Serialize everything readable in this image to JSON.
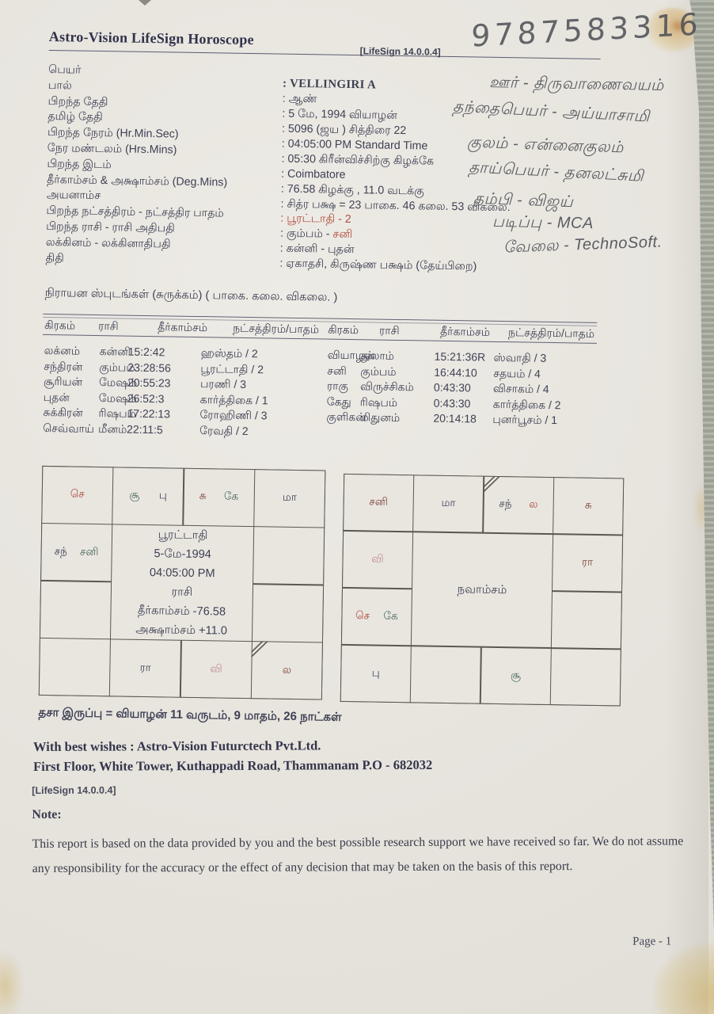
{
  "colors": {
    "ink": "#3e4054",
    "red": "#b14a3d",
    "pink": "#c08d90",
    "green": "#4e6e5b",
    "maroon": "#7e4438"
  },
  "header": {
    "title": "Astro-Vision LifeSign Horoscope",
    "version": "[LifeSign 14.0.0.4]"
  },
  "handwriting": {
    "phone": "9787583316",
    "notes": [
      "ஊர் - திருவாணைவயம்",
      "தந்தைபெயர் - அய்யாசாமி",
      "குலம் - என்னைகுலம்",
      "தாய்பெயர் - தனலட்சுமி",
      "தம்பி - விஜய்",
      "படிப்பு - MCA",
      "வேலை - TechnoSoft."
    ]
  },
  "info": {
    "rows": [
      {
        "label": "பெயர்",
        "segments": [
          {
            "text": ": VELLINGIRI A",
            "bold": true
          }
        ]
      },
      {
        "label": "பால்",
        "segments": [
          {
            "text": ": ஆண்"
          }
        ]
      },
      {
        "label": "பிறந்த தேதி",
        "segments": [
          {
            "text": ": 5 மே, 1994 வியாழன்"
          }
        ]
      },
      {
        "label": "தமிழ் தேதி",
        "segments": [
          {
            "text": ": 5096 (ஜய ) சித்திரை 22"
          }
        ]
      },
      {
        "label": "பிறந்த நேரம் (Hr.Min.Sec)",
        "segments": [
          {
            "text": ": 04:05:00 PM Standard Time"
          }
        ]
      },
      {
        "label": "நேர மண்டலம் (Hrs.Mins)",
        "segments": [
          {
            "text": ": 05:30 கிரீன்விச்சிற்கு கிழக்கே"
          }
        ]
      },
      {
        "label": "பிறந்த இடம்",
        "segments": [
          {
            "text": ": Coimbatore"
          }
        ]
      },
      {
        "label": "தீர்காம்சம் & அக்ஷாம்சம் (Deg.Mins)",
        "segments": [
          {
            "text": ": 76.58 கிழக்கு , 11.0 வடக்கு"
          }
        ]
      },
      {
        "label": "அயனாம்ச",
        "segments": [
          {
            "text": ": சித்ர பக்ஷ = 23 பாகை. 46 கலை. 53 விகலை."
          }
        ]
      },
      {
        "label": "பிறந்த நட்சத்திரம் - நட்சத்திர பாதம்",
        "segments": [
          {
            "text": ": பூரட்டாதி - 2",
            "color": "red"
          }
        ]
      },
      {
        "label": "பிறந்த ராசி - ராசி அதிபதி",
        "segments": [
          {
            "text": ": கும்பம் - "
          },
          {
            "text": "சனி",
            "color": "red"
          }
        ]
      },
      {
        "label": "லக்கினம் - லக்கினாதிபதி",
        "segments": [
          {
            "text": ": கன்னி - புதன்"
          }
        ]
      },
      {
        "label": "திதி",
        "segments": [
          {
            "text": ": ஏகாதசி, கிருஷ்ண பக்ஷம் (தேய்பிறை)"
          }
        ]
      }
    ]
  },
  "planet_table": {
    "title": "நிராயன ஸ்புடங்கள் (சுருக்கம்) ( பாகை. கலை. விகலை. )",
    "headers": [
      "கிரகம்",
      "ராசி",
      "தீர்காம்சம்",
      "நட்சத்திரம்/பாதம்"
    ],
    "left_rows": [
      [
        "லக்னம்",
        "கன்னி",
        "15:2:42",
        "ஹஸ்தம் / 2"
      ],
      [
        "சந்திரன்",
        "கும்பம்",
        "23:28:56",
        "பூரட்டாதி / 2"
      ],
      [
        "சூரியன்",
        "மேஷம்",
        "20:55:23",
        "பரணி / 3"
      ],
      [
        "புதன்",
        "மேஷம்",
        "26:52:3",
        "கார்த்திகை / 1"
      ],
      [
        "சுக்கிரன்",
        "ரிஷபம்",
        "17:22:13",
        "ரோஹிணி / 3"
      ],
      [
        "செவ்வாய்",
        "மீனம்",
        "22:11:5",
        "ரேவதி / 2"
      ]
    ],
    "right_rows": [
      [
        "வியாழன்",
        "துலாம்",
        "15:21:36R",
        "ஸ்வாதி / 3"
      ],
      [
        "சனி",
        "கும்பம்",
        "16:44:10",
        "சதயம் / 4"
      ],
      [
        "ராகு",
        "விருச்சிகம்",
        "0:43:30",
        "விசாகம் / 4"
      ],
      [
        "கேது",
        "ரிஷபம்",
        "0:43:30",
        "கார்த்திகை / 2"
      ],
      [
        "குளிகன்",
        "மிதுனம்",
        "20:14:18",
        "புனர்பூசம் / 1"
      ]
    ]
  },
  "charts": {
    "rasi": {
      "cells": [
        [
          "செ:red"
        ],
        [
          "சூ:green",
          "பு:ink"
        ],
        [
          "சு:maroon",
          "கே:green"
        ],
        [
          "மா:ink"
        ],
        [
          "சந்:ink",
          "சனி:green"
        ],
        [],
        [],
        [],
        [],
        [
          "ரா:ink"
        ],
        [
          "வி:pink"
        ],
        [
          "ல:maroon"
        ]
      ],
      "center": [
        "பூரட்டாதி",
        "5-மே-1994",
        "04:05:00 PM",
        "ராசி",
        "தீர்காம்சம்  -76.58",
        "அக்ஷாம்சம்  +11.0"
      ],
      "lagna_cell": 11
    },
    "navamsam": {
      "cells": [
        [
          "சனி:maroon"
        ],
        [
          "மா:ink"
        ],
        [
          "சந்:ink",
          "ல:red"
        ],
        [
          "சு:maroon"
        ],
        [
          "வி:pink"
        ],
        [
          "ரா:maroon"
        ],
        [
          "செ:red",
          "கே:green"
        ],
        [],
        [
          "பு:ink"
        ],
        [],
        [
          "சூ:green"
        ],
        []
      ],
      "center": [
        "நவாம்சம்"
      ],
      "lagna_cell": 2
    }
  },
  "dasa_line": "தசா இருப்பு = வியாழன் 11 வருடம், 9 மாதம், 26 நாட்கள்",
  "footer": {
    "wishes": "With best wishes : Astro-Vision Futurctech Pvt.Ltd.",
    "address": "First Floor, White Tower, Kuthappadi Road, Thammanam P.O - 682032",
    "version": "[LifeSign 14.0.0.4]",
    "note_label": "Note:",
    "disclaimer": "This report is based on the data provided by you and the best possible research support we have received so far. We do not assume any responsibility for the accuracy or the effect of any decision that may be taken on the basis of this report.",
    "page_label": "Page - 1"
  }
}
